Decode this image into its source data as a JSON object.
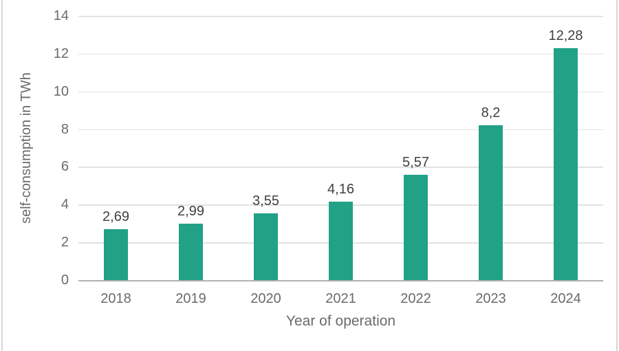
{
  "chart_data": {
    "type": "bar",
    "title": "",
    "xlabel": "Year of operation",
    "ylabel": "self-consumption in TWh",
    "categories": [
      "2018",
      "2019",
      "2020",
      "2021",
      "2022",
      "2023",
      "2024"
    ],
    "values": [
      2.69,
      2.99,
      3.55,
      4.16,
      5.57,
      8.2,
      12.28
    ],
    "value_labels": [
      "2,69",
      "2,99",
      "3,55",
      "4,16",
      "5,57",
      "8,2",
      "12,28"
    ],
    "ylim": [
      0,
      14
    ],
    "ytick_step": 2,
    "ytick_labels": [
      "0",
      "2",
      "4",
      "6",
      "8",
      "10",
      "12",
      "14"
    ],
    "grid": "horizontal",
    "legend": "none",
    "decimal_separator": ",",
    "colors": {
      "bar": "#21a185",
      "gridline": "#e2e2e2",
      "axis_line": "#b0b0b0",
      "tick_text": "#6a6a6a",
      "data_label_text": "#404040",
      "axis_title_text": "#6a6a6a",
      "page_border": "#d6d6d6",
      "background": "#ffffff"
    }
  }
}
